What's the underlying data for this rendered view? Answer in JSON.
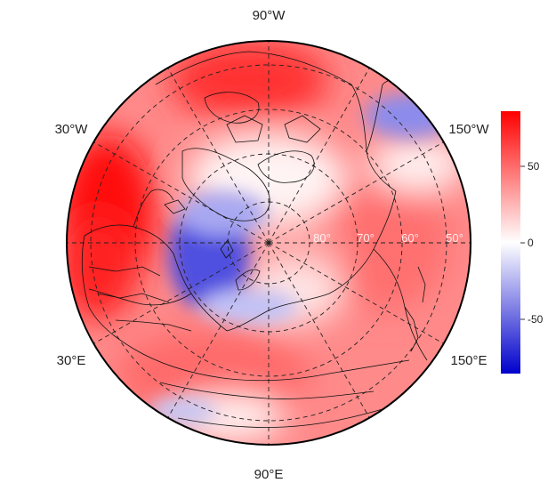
{
  "map": {
    "projection": "north-polar-stereographic",
    "longitude_labels": {
      "top": "90°W",
      "upper_left": "30°W",
      "upper_right": "150°W",
      "lower_left": "30°E",
      "lower_right": "150°E",
      "bottom": "90°E"
    },
    "latitude_labels": [
      "80°",
      "70°",
      "60°",
      "50°"
    ],
    "latitude_circles": [
      80,
      70,
      60,
      50
    ],
    "meridian_lines": "every 30° from 0° to 330°",
    "field_color_description": "mostly red (positive); blue (negative) near Barents/Kara Sea and Alaska/East Siberia, weak blue over Central Asia"
  },
  "colorbar": {
    "range": [
      -85,
      85
    ],
    "ticks": [
      "50",
      "0",
      "-50"
    ],
    "tick_values": [
      50,
      0,
      -50
    ],
    "colors": {
      "max": "#ff0000",
      "mid": "#ffffff",
      "min": "#0000cc"
    }
  },
  "icons": {
    "coastlines": "coastline-outline",
    "frame": "circular-boundary"
  }
}
